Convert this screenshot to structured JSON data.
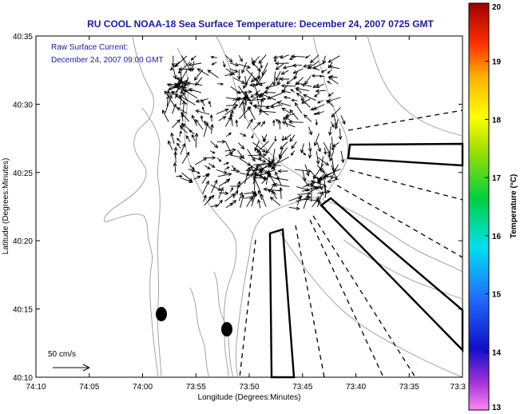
{
  "chart_data": {
    "type": "vector-map",
    "title": "RU COOL  NOAA-18  Sea Surface Temperature:  December 24, 2007 0725 GMT",
    "annotation_lines": [
      "Raw Surface Current:",
      "December 24, 2007 09:00 GMT"
    ],
    "xlabel": "Longitude (Degrees:Minutes)",
    "ylabel": "Latitude (Degrees:Minutes)",
    "x_ticks": [
      "74:10",
      "74:05",
      "74:00",
      "73:55",
      "73:50",
      "73:45",
      "73:40",
      "73:35",
      "73:3"
    ],
    "y_ticks": [
      "40:10",
      "40:15",
      "40:20",
      "40:25",
      "40:30",
      "40:35"
    ],
    "xlim_minutes_west": [
      10,
      -30
    ],
    "ylim_minutes_north": [
      10,
      35
    ],
    "scale_label": "50 cm/s",
    "colorbar": {
      "label": "Temperature (°C)",
      "ticks": [
        "13",
        "14",
        "15",
        "16",
        "17",
        "18",
        "19",
        "20"
      ],
      "range": [
        13,
        20
      ]
    },
    "colors": {
      "title": "#1a1aa6",
      "arrow": "#000000",
      "contour": "#9a9a9a"
    }
  }
}
